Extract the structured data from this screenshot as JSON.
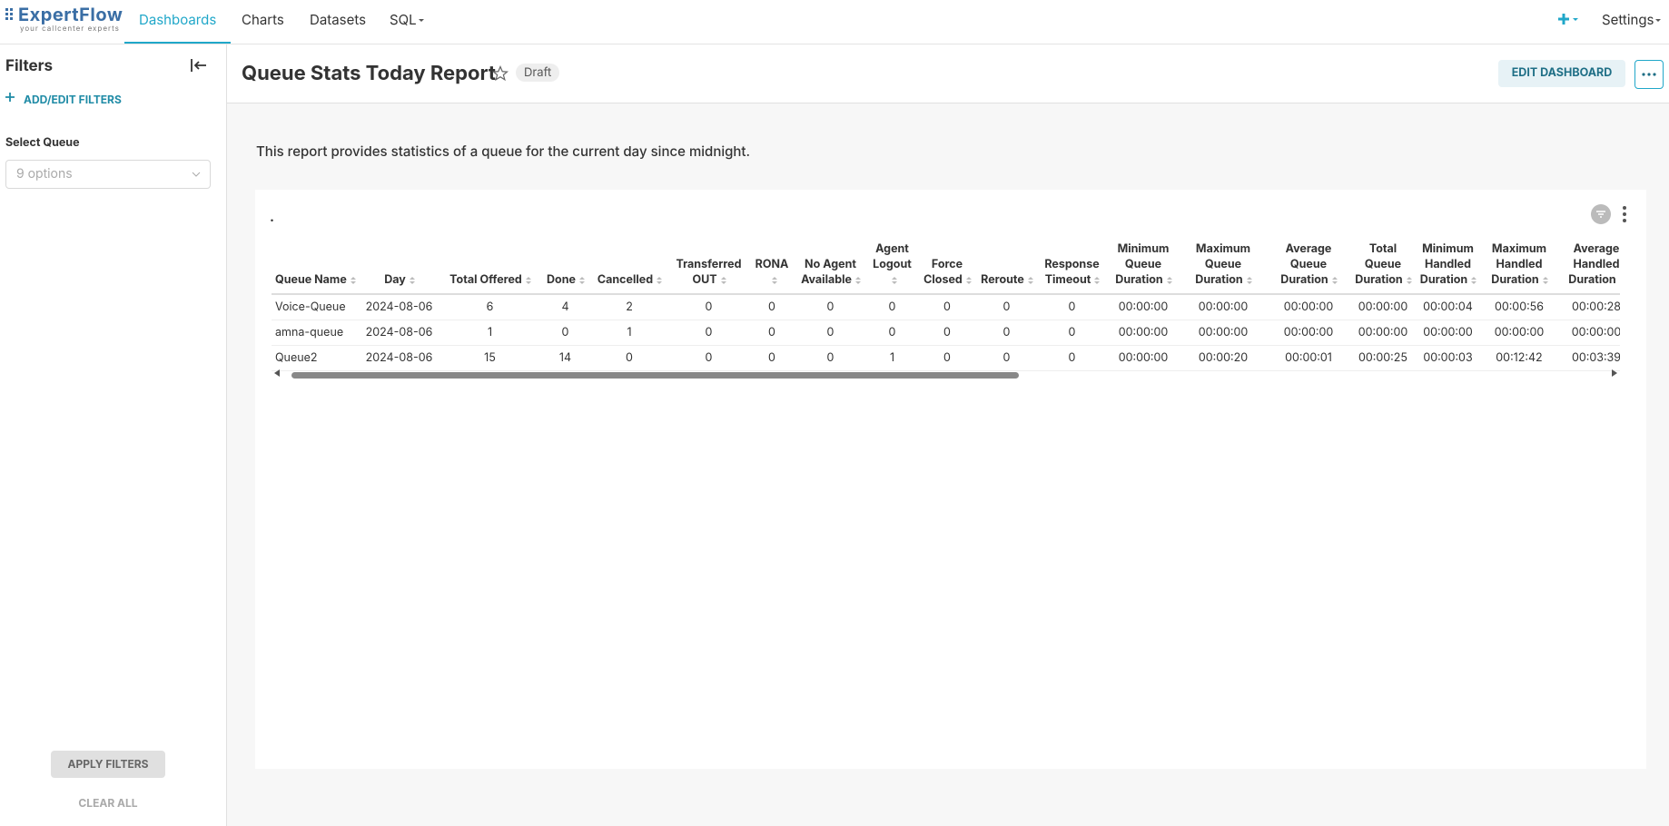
{
  "nav": {
    "logo": "ExpertFlow",
    "tagline": "your callcenter experts",
    "items": [
      "Dashboards",
      "Charts",
      "Datasets",
      "SQL"
    ],
    "settings": "Settings"
  },
  "sidebar": {
    "title": "Filters",
    "add_filters": "ADD/EDIT FILTERS",
    "filter_label": "Select Queue",
    "filter_placeholder": "9 options",
    "apply": "APPLY FILTERS",
    "clear": "CLEAR ALL"
  },
  "header": {
    "title": "Queue Stats Today Report",
    "badge": "Draft",
    "edit": "EDIT DASHBOARD"
  },
  "description": "This report provides statistics of a queue for the current day since midnight.",
  "table": {
    "title": ".",
    "columns": [
      "Queue Name",
      "Day",
      "Total Offered",
      "Done",
      "Cancelled",
      "Transferred OUT",
      "RONA",
      "No Agent Available",
      "Agent Logout",
      "Force Closed",
      "Reroute",
      "Response Timeout",
      "Minimum Queue Duration",
      "Maximum Queue Duration",
      "Average Queue Duration",
      "Total Queue Duration",
      "Minimum Handled Duration",
      "Maximum Handled Duration",
      "Average Handled Duration"
    ],
    "rows": [
      [
        "Voice-Queue",
        "2024-08-06",
        6,
        4,
        2,
        0,
        0,
        0,
        0,
        0,
        0,
        0,
        "00:00:00",
        "00:00:00",
        "00:00:00",
        "00:00:00",
        "00:00:04",
        "00:00:56",
        "00:00:28"
      ],
      [
        "amna-queue",
        "2024-08-06",
        1,
        0,
        1,
        0,
        0,
        0,
        0,
        0,
        0,
        0,
        "00:00:00",
        "00:00:00",
        "00:00:00",
        "00:00:00",
        "00:00:00",
        "00:00:00",
        "00:00:00"
      ],
      [
        "Queue2",
        "2024-08-06",
        15,
        14,
        0,
        0,
        0,
        0,
        1,
        0,
        0,
        0,
        "00:00:00",
        "00:00:20",
        "00:00:01",
        "00:00:25",
        "00:00:03",
        "00:12:42",
        "00:03:39"
      ]
    ]
  }
}
